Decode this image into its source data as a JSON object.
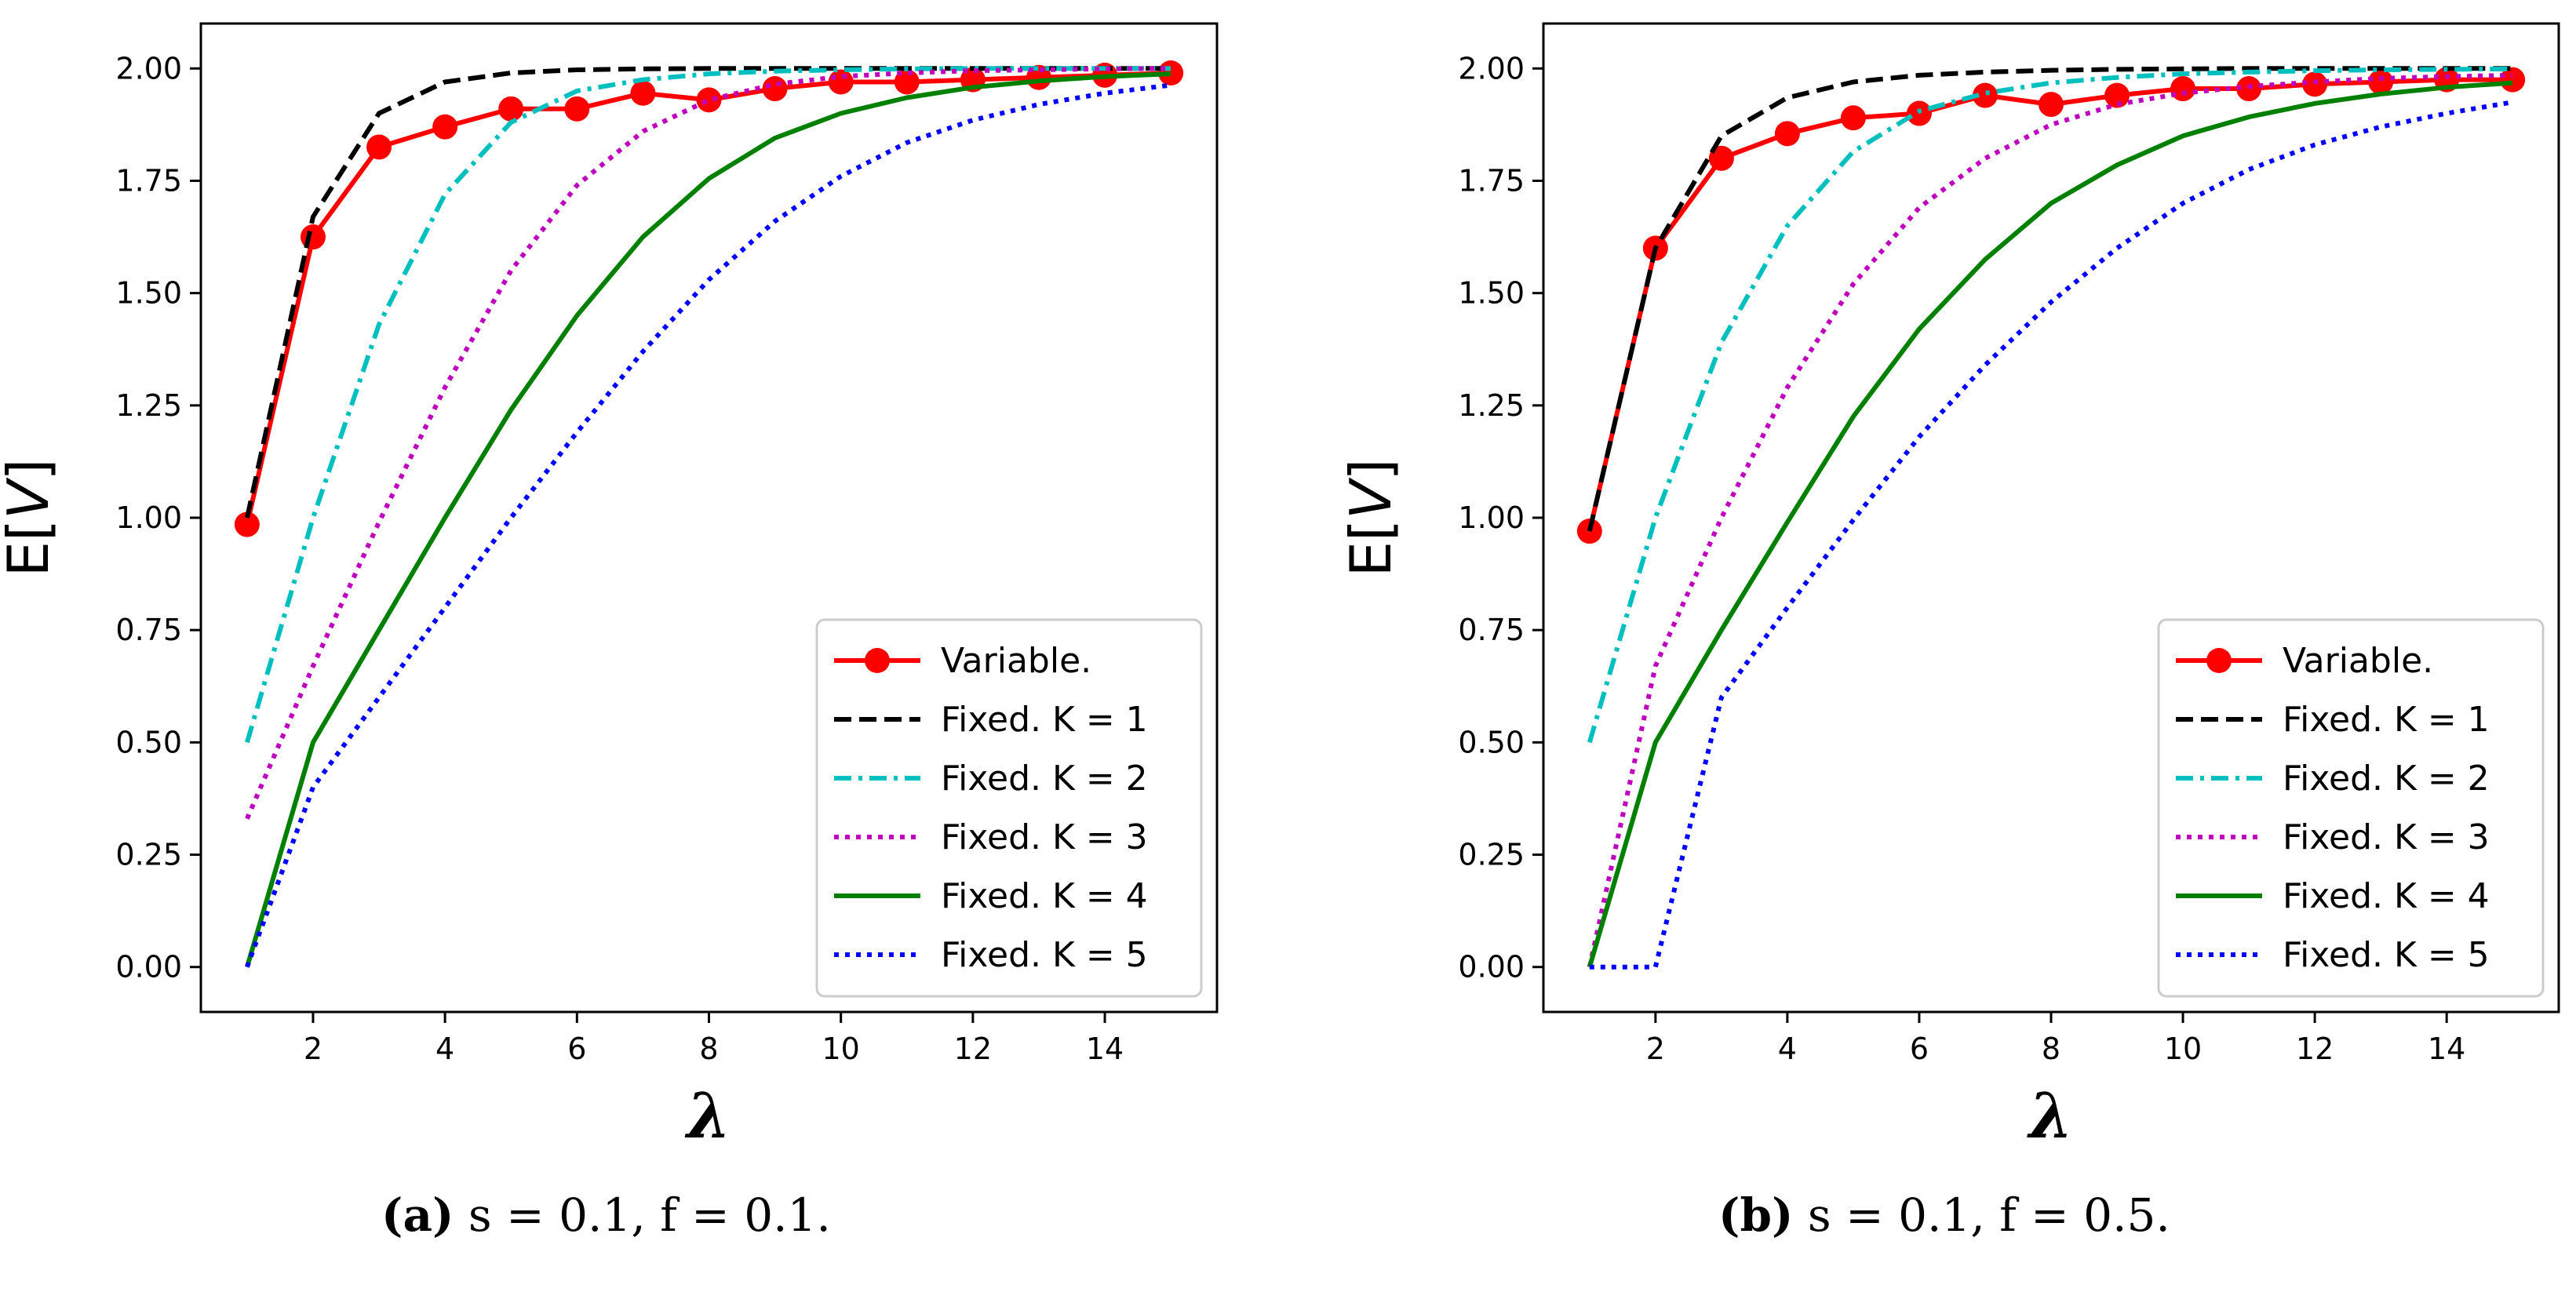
{
  "chart_data": [
    {
      "type": "line",
      "panel_id": "a",
      "xlabel": "λ",
      "ylabel_prefix": "E[",
      "ylabel_var": "V",
      "ylabel_suffix": "]",
      "xlim": [
        0.3,
        15.7
      ],
      "ylim": [
        -0.1,
        2.1
      ],
      "xticks": [
        "2",
        "4",
        "6",
        "8",
        "10",
        "12",
        "14"
      ],
      "yticks": [
        "0.00",
        "0.25",
        "0.50",
        "0.75",
        "1.00",
        "1.25",
        "1.50",
        "1.75",
        "2.00"
      ],
      "legend_position": "bottom-right",
      "x": [
        1,
        2,
        3,
        4,
        5,
        6,
        7,
        8,
        9,
        10,
        11,
        12,
        13,
        14,
        15
      ],
      "series": [
        {
          "name": "Variable.",
          "style": "solid-markers",
          "color": "#ff0000",
          "values": [
            0.985,
            1.625,
            1.825,
            1.87,
            1.91,
            1.91,
            1.945,
            1.93,
            1.955,
            1.97,
            1.97,
            1.975,
            1.98,
            1.985,
            1.99
          ]
        },
        {
          "name": "Fixed. K = 1",
          "style": "dashed",
          "color": "#000000",
          "values": [
            1.0,
            1.67,
            1.9,
            1.97,
            1.99,
            1.997,
            1.999,
            2.0,
            2.0,
            2.0,
            2.0,
            2.0,
            2.0,
            2.0,
            2.0
          ]
        },
        {
          "name": "Fixed. K = 2",
          "style": "dashdot",
          "color": "#00bfbf",
          "values": [
            0.5,
            1.0,
            1.43,
            1.72,
            1.88,
            1.95,
            1.975,
            1.988,
            1.994,
            1.997,
            1.999,
            2.0,
            2.0,
            2.0,
            2.0
          ]
        },
        {
          "name": "Fixed. K = 3",
          "style": "dotted",
          "color": "#bf00bf",
          "values": [
            0.33,
            0.67,
            0.99,
            1.29,
            1.55,
            1.74,
            1.86,
            1.93,
            1.965,
            1.982,
            1.99,
            1.995,
            1.997,
            1.999,
            2.0
          ]
        },
        {
          "name": "Fixed. K = 4",
          "style": "solid",
          "color": "#008000",
          "values": [
            0.0,
            0.5,
            0.75,
            1.0,
            1.24,
            1.45,
            1.625,
            1.755,
            1.845,
            1.9,
            1.935,
            1.958,
            1.972,
            1.982,
            1.988
          ]
        },
        {
          "name": "Fixed. K = 5",
          "style": "dotted-fine",
          "color": "#0000ff",
          "values": [
            0.0,
            0.4,
            0.6,
            0.8,
            1.0,
            1.19,
            1.37,
            1.53,
            1.66,
            1.76,
            1.835,
            1.885,
            1.92,
            1.945,
            1.963
          ]
        }
      ],
      "caption_label": "(a)",
      "caption_math": "s = 0.1, f = 0.1."
    },
    {
      "type": "line",
      "panel_id": "b",
      "xlabel": "λ",
      "ylabel_prefix": "E[",
      "ylabel_var": "V",
      "ylabel_suffix": "]",
      "xlim": [
        0.3,
        15.7
      ],
      "ylim": [
        -0.1,
        2.1
      ],
      "xticks": [
        "2",
        "4",
        "6",
        "8",
        "10",
        "12",
        "14"
      ],
      "yticks": [
        "0.00",
        "0.25",
        "0.50",
        "0.75",
        "1.00",
        "1.25",
        "1.50",
        "1.75",
        "2.00"
      ],
      "legend_position": "bottom-right",
      "x": [
        1,
        2,
        3,
        4,
        5,
        6,
        7,
        8,
        9,
        10,
        11,
        12,
        13,
        14,
        15
      ],
      "series": [
        {
          "name": "Variable.",
          "style": "solid-markers",
          "color": "#ff0000",
          "values": [
            0.97,
            1.6,
            1.8,
            1.855,
            1.89,
            1.9,
            1.94,
            1.92,
            1.94,
            1.955,
            1.955,
            1.965,
            1.97,
            1.975,
            1.975
          ]
        },
        {
          "name": "Fixed. K = 1",
          "style": "dashed",
          "color": "#000000",
          "values": [
            0.97,
            1.6,
            1.85,
            1.935,
            1.97,
            1.985,
            1.992,
            1.996,
            1.998,
            1.999,
            2.0,
            2.0,
            2.0,
            2.0,
            2.0
          ]
        },
        {
          "name": "Fixed. K = 2",
          "style": "dashdot",
          "color": "#00bfbf",
          "values": [
            0.5,
            1.0,
            1.39,
            1.65,
            1.815,
            1.905,
            1.945,
            1.968,
            1.98,
            1.988,
            1.992,
            1.995,
            1.997,
            1.998,
            1.999
          ]
        },
        {
          "name": "Fixed. K = 3",
          "style": "dotted",
          "color": "#bf00bf",
          "values": [
            0.0,
            0.67,
            1.0,
            1.29,
            1.52,
            1.69,
            1.8,
            1.875,
            1.92,
            1.945,
            1.96,
            1.97,
            1.978,
            1.982,
            1.985
          ]
        },
        {
          "name": "Fixed. K = 4",
          "style": "solid",
          "color": "#008000",
          "values": [
            0.0,
            0.5,
            0.75,
            0.99,
            1.225,
            1.42,
            1.575,
            1.7,
            1.785,
            1.85,
            1.892,
            1.922,
            1.943,
            1.958,
            1.968
          ]
        },
        {
          "name": "Fixed. K = 5",
          "style": "dotted-fine",
          "color": "#0000ff",
          "values": [
            0.0,
            0.0,
            0.6,
            0.8,
            0.995,
            1.18,
            1.34,
            1.48,
            1.6,
            1.7,
            1.775,
            1.83,
            1.87,
            1.9,
            1.925
          ]
        }
      ],
      "caption_label": "(b)",
      "caption_math": "s = 0.1, f = 0.5."
    }
  ]
}
